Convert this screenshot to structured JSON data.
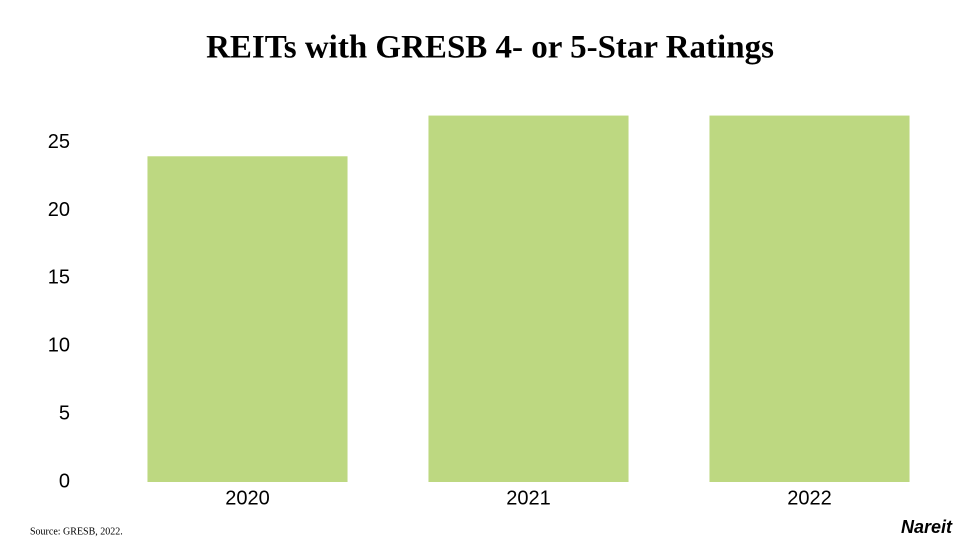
{
  "chart_data": {
    "type": "bar",
    "title": "REITs with GRESB 4- or 5-Star Ratings",
    "categories": [
      "2020",
      "2021",
      "2022"
    ],
    "values": [
      24,
      27,
      27
    ],
    "color": "#bdd881",
    "ylim": [
      0,
      28
    ],
    "yticks": [
      0,
      5,
      10,
      15,
      20,
      25
    ],
    "grid": false,
    "source": "Source: GRESB, 2022.",
    "logo": "Nareit"
  }
}
